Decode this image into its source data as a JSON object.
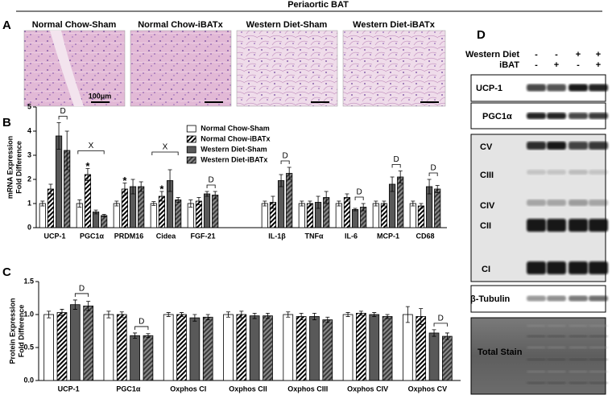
{
  "title": "Periaortic BAT",
  "panel_labels": [
    "A",
    "B",
    "C",
    "D"
  ],
  "images": [
    {
      "title": "Normal Chow-Sham",
      "scale_bar": "100μm"
    },
    {
      "title": "Normal Chow-iBATx"
    },
    {
      "title": "Western Diet-Sham"
    },
    {
      "title": "Western Diet-iBATx"
    }
  ],
  "chart_data": [
    {
      "type": "bar",
      "ylabel": [
        "mRNA Expression",
        "Fold Difference"
      ],
      "categories": [
        "UCP-1",
        "PGC1α",
        "PRDM16",
        "Cidea",
        "FGF-21",
        null,
        "IL-1β",
        "TNFα",
        "IL-6",
        "MCP-1",
        "CD68"
      ],
      "ylim": [
        0,
        5
      ],
      "yticks": [
        0,
        1,
        2,
        3,
        4,
        5
      ],
      "legend": "upper center",
      "series": [
        {
          "name": "Normal Chow-Sham",
          "color": "#ffffff",
          "pattern": "solid",
          "values": [
            1.0,
            1.0,
            1.0,
            1.0,
            1.0,
            null,
            1.0,
            1.0,
            1.0,
            1.0,
            1.0
          ],
          "errors": [
            0.1,
            0.15,
            0.1,
            0.08,
            0.15,
            null,
            0.1,
            0.1,
            0.1,
            0.1,
            0.1
          ]
        },
        {
          "name": "Normal Chow-iBATx",
          "color": "#ffffff",
          "pattern": "hatch",
          "values": [
            1.6,
            2.2,
            1.6,
            1.3,
            1.1,
            null,
            1.05,
            1.0,
            1.25,
            1.0,
            0.9
          ],
          "errors": [
            0.2,
            0.25,
            0.25,
            0.2,
            0.15,
            null,
            0.25,
            0.1,
            0.15,
            0.1,
            0.1
          ]
        },
        {
          "name": "Western Diet-Sham",
          "color": "#595959",
          "pattern": "solid",
          "values": [
            3.8,
            0.65,
            1.7,
            1.95,
            1.4,
            null,
            1.95,
            1.05,
            0.75,
            1.8,
            1.7
          ],
          "errors": [
            0.55,
            0.08,
            0.3,
            0.45,
            0.1,
            null,
            0.25,
            0.25,
            0.05,
            0.3,
            0.3
          ]
        },
        {
          "name": "Western Diet-iBATx",
          "color": "#3a3a3a",
          "pattern": "hatch",
          "values": [
            3.2,
            0.5,
            1.7,
            1.15,
            1.35,
            null,
            2.25,
            1.25,
            0.85,
            2.1,
            1.6
          ],
          "errors": [
            0.8,
            0.05,
            0.2,
            0.1,
            0.15,
            null,
            0.25,
            0.25,
            0.15,
            0.25,
            0.15
          ]
        }
      ],
      "annotations": [
        {
          "text": "D",
          "category": 0,
          "series": [
            2,
            3
          ]
        },
        {
          "text": "X",
          "category": 1,
          "series": [
            0,
            3
          ]
        },
        {
          "text": "*",
          "category": 1,
          "series": [
            1
          ]
        },
        {
          "text": "*",
          "category": 2,
          "series": [
            1
          ]
        },
        {
          "text": "X",
          "category": 3,
          "series": [
            0,
            3
          ]
        },
        {
          "text": "*",
          "category": 3,
          "series": [
            1
          ]
        },
        {
          "text": "D",
          "category": 4,
          "series": [
            2,
            3
          ]
        },
        {
          "text": "D",
          "category": 6,
          "series": [
            2,
            3
          ]
        },
        {
          "text": "D",
          "category": 8,
          "series": [
            2,
            3
          ]
        },
        {
          "text": "D",
          "category": 9,
          "series": [
            2,
            3
          ]
        },
        {
          "text": "D",
          "category": 10,
          "series": [
            2,
            3
          ]
        }
      ]
    },
    {
      "type": "bar",
      "ylabel": [
        "Protein Expression",
        "Fold Difference"
      ],
      "categories": [
        "UCP-1",
        "PGC1α",
        "Oxphos CI",
        "Oxphos CII",
        "Oxphos CIII",
        "Oxphos CIV",
        "Oxphos CV"
      ],
      "ylim": [
        0,
        1.5
      ],
      "yticks": [
        {
          "value": 0,
          "label": "0.0"
        },
        {
          "value": 0.5,
          "label": "0.5"
        },
        {
          "value": 1,
          "label": "1.0"
        },
        {
          "value": 1.5,
          "label": "1.5"
        }
      ],
      "series": [
        {
          "color": "#ffffff",
          "pattern": "solid",
          "values": [
            1.0,
            1.0,
            1.0,
            1.0,
            1.0,
            1.0,
            1.0
          ],
          "errors": [
            0.05,
            0.05,
            0.03,
            0.04,
            0.04,
            0.03,
            0.12
          ]
        },
        {
          "color": "#ffffff",
          "pattern": "hatch",
          "values": [
            1.03,
            1.0,
            1.0,
            1.0,
            0.97,
            1.02,
            0.97
          ],
          "errors": [
            0.05,
            0.04,
            0.03,
            0.05,
            0.05,
            0.03,
            0.12
          ]
        },
        {
          "color": "#595959",
          "pattern": "solid",
          "values": [
            1.15,
            0.68,
            0.95,
            0.98,
            0.97,
            1.0,
            0.72
          ],
          "errors": [
            0.07,
            0.04,
            0.05,
            0.04,
            0.05,
            0.03,
            0.05
          ]
        },
        {
          "color": "#3a3a3a",
          "pattern": "hatch",
          "values": [
            1.13,
            0.68,
            0.96,
            0.98,
            0.92,
            0.97,
            0.67
          ],
          "errors": [
            0.07,
            0.03,
            0.04,
            0.04,
            0.04,
            0.03,
            0.05
          ]
        }
      ],
      "annotations": [
        {
          "text": "D",
          "category": 0,
          "series": [
            2,
            3
          ]
        },
        {
          "text": "D",
          "category": 1,
          "series": [
            2,
            3
          ]
        },
        {
          "text": "D",
          "category": 6,
          "series": [
            2,
            3
          ]
        }
      ]
    }
  ],
  "blot": {
    "conditions": [
      {
        "label": "Western Diet",
        "signs": [
          "-",
          "-",
          "+",
          "+"
        ]
      },
      {
        "label": "iBAT",
        "signs": [
          "-",
          "+",
          "-",
          "+"
        ]
      }
    ],
    "rows": [
      "UCP-1",
      "PGC1α"
    ],
    "oxphos": [
      "CV",
      "CIII",
      "CIV",
      "CII",
      "CI"
    ],
    "loading": [
      "β-Tubulin",
      "Total Stain"
    ]
  }
}
